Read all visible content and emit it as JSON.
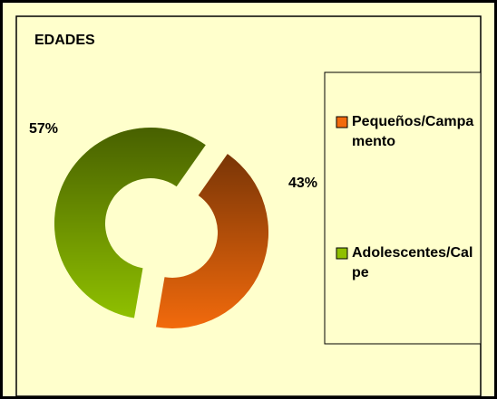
{
  "chart_data": {
    "type": "donut",
    "title": "EDADES",
    "categories": [
      "Pequeños/Campamento",
      "Adolescentes/Calpe"
    ],
    "values": [
      43,
      57
    ],
    "value_labels": [
      "43%",
      "57%"
    ],
    "colors": [
      "#f26a0c",
      "#8fc000"
    ],
    "legend": "right"
  }
}
